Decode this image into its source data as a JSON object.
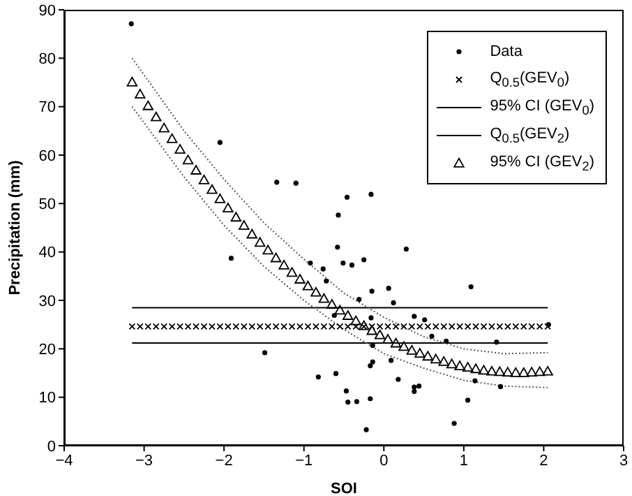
{
  "chart_data": {
    "type": "scatter",
    "xlabel": "SOI",
    "ylabel": "Precipitation (mm)",
    "xlim": [
      -4,
      3
    ],
    "xticks": [
      -4,
      -3,
      -2,
      -1,
      0,
      1,
      2,
      3
    ],
    "ylim": [
      0,
      90
    ],
    "yticks": [
      0,
      10,
      20,
      30,
      40,
      50,
      60,
      70,
      80,
      90
    ],
    "legend": "top right",
    "series": [
      {
        "name": "Data",
        "marker": "circle",
        "color": "#000000",
        "x": [
          -3.16,
          -2.05,
          -1.34,
          -1.1,
          -0.46,
          -0.57,
          -0.16,
          -0.58,
          -0.51,
          -0.4,
          -0.92,
          -0.76,
          -1.91,
          -0.72,
          -0.62,
          -1.49,
          -0.82,
          -0.6,
          -0.47,
          -0.45,
          -0.25,
          0.28,
          -0.15,
          0.06,
          0.12,
          -0.31,
          1.09,
          0.38,
          0.51,
          -0.16,
          0.6,
          0.78,
          1.41,
          -0.14,
          0.09,
          -0.14,
          -0.17,
          0.18,
          0.38,
          0.38,
          0.44,
          1.14,
          1.46,
          -0.34,
          -0.17,
          1.05,
          -0.22,
          0.88,
          2.06
        ],
        "values": [
          87.1,
          62.6,
          54.4,
          54.2,
          51.3,
          47.6,
          51.9,
          41.0,
          37.7,
          37.3,
          37.7,
          36.5,
          38.7,
          34.0,
          26.9,
          19.2,
          14.2,
          14.9,
          11.3,
          9.0,
          38.4,
          40.6,
          31.9,
          32.5,
          29.5,
          30.2,
          32.8,
          26.7,
          26.0,
          26.4,
          22.6,
          21.6,
          21.4,
          20.7,
          17.6,
          17.3,
          16.5,
          13.7,
          12.1,
          11.2,
          12.3,
          13.4,
          12.2,
          9.1,
          9.7,
          9.4,
          3.3,
          4.6,
          25.0
        ]
      },
      {
        "name": "Q$_{0.5}$(GEV$_{0}$)",
        "marker": "cross",
        "color": "#000000",
        "x": [
          -3.15,
          -3.05,
          -2.95,
          -2.85,
          -2.75,
          -2.65,
          -2.55,
          -2.45,
          -2.35,
          -2.25,
          -2.15,
          -2.05,
          -1.95,
          -1.85,
          -1.75,
          -1.65,
          -1.55,
          -1.45,
          -1.35,
          -1.25,
          -1.15,
          -1.05,
          -0.95,
          -0.85,
          -0.75,
          -0.65,
          -0.55,
          -0.45,
          -0.35,
          -0.25,
          -0.15,
          -0.05,
          0.05,
          0.15,
          0.25,
          0.35,
          0.45,
          0.55,
          0.65,
          0.75,
          0.85,
          0.95,
          1.05,
          1.15,
          1.25,
          1.35,
          1.45,
          1.55,
          1.65,
          1.75,
          1.85,
          1.95,
          2.05
        ],
        "values": [
          24.6,
          24.6,
          24.6,
          24.6,
          24.6,
          24.6,
          24.6,
          24.6,
          24.6,
          24.6,
          24.6,
          24.6,
          24.6,
          24.6,
          24.6,
          24.6,
          24.6,
          24.6,
          24.6,
          24.6,
          24.6,
          24.6,
          24.6,
          24.6,
          24.6,
          24.6,
          24.6,
          24.6,
          24.6,
          24.6,
          24.6,
          24.6,
          24.6,
          24.6,
          24.6,
          24.6,
          24.6,
          24.6,
          24.6,
          24.6,
          24.6,
          24.6,
          24.6,
          24.6,
          24.6,
          24.6,
          24.6,
          24.6,
          24.6,
          24.6,
          24.6,
          24.6,
          24.6
        ]
      },
      {
        "name": "95% CI (GEV$_{0}$)",
        "type": "line",
        "marker": "none",
        "line_style": "solid",
        "color": "#000000",
        "x": [
          -3.15,
          2.05
        ],
        "values": [
          28.5,
          28.5
        ]
      },
      {
        "name": "Q$_{0.5}$(GEV$_{2}$)",
        "type": "line",
        "marker": "none",
        "line_style": "solid",
        "color": "#000000",
        "x": [
          -3.15,
          2.05
        ],
        "values": [
          21.2,
          21.2
        ]
      },
      {
        "name": "95% CI (GEV$_{2}$)",
        "marker": "triangle",
        "color": "#000000",
        "x": [
          -3.15,
          -3.05,
          -2.95,
          -2.85,
          -2.75,
          -2.65,
          -2.55,
          -2.45,
          -2.35,
          -2.25,
          -2.15,
          -2.05,
          -1.95,
          -1.85,
          -1.75,
          -1.65,
          -1.55,
          -1.45,
          -1.35,
          -1.25,
          -1.15,
          -1.05,
          -0.95,
          -0.85,
          -0.75,
          -0.65,
          -0.55,
          -0.45,
          -0.35,
          -0.25,
          -0.15,
          -0.05,
          0.05,
          0.15,
          0.25,
          0.35,
          0.45,
          0.55,
          0.65,
          0.75,
          0.85,
          0.95,
          1.05,
          1.15,
          1.25,
          1.35,
          1.45,
          1.55,
          1.65,
          1.75,
          1.85,
          1.95,
          2.05
        ],
        "values": [
          75.0,
          72.5,
          70.1,
          67.8,
          65.5,
          63.3,
          61.1,
          58.9,
          56.8,
          54.8,
          52.8,
          50.9,
          49.0,
          47.1,
          45.4,
          43.6,
          41.9,
          40.3,
          38.7,
          37.2,
          35.7,
          34.3,
          32.9,
          31.6,
          30.3,
          29.1,
          27.9,
          26.8,
          25.7,
          24.7,
          23.7,
          22.8,
          21.9,
          21.1,
          20.4,
          19.6,
          19.0,
          18.4,
          17.8,
          17.3,
          16.8,
          16.4,
          16.1,
          15.8,
          15.5,
          15.3,
          15.2,
          15.1,
          15.0,
          15.0,
          15.1,
          15.2,
          15.3
        ]
      },
      {
        "type": "line",
        "marker": "none",
        "line_style": "dotted",
        "color": "#555555",
        "x": [
          -3.15,
          -2.5,
          -2,
          -1.5,
          -1,
          -0.5,
          0,
          0.5,
          1,
          1.5,
          2.05
        ],
        "values": [
          80,
          65,
          55,
          46,
          38.5,
          31.5,
          26.5,
          22.5,
          20,
          19,
          19.2
        ]
      },
      {
        "type": "line",
        "marker": "none",
        "line_style": "dotted",
        "color": "#555555",
        "x": [
          -3.15,
          -2.5,
          -2,
          -1.5,
          -1,
          -0.5,
          0,
          0.5,
          1,
          1.5,
          2.05
        ],
        "values": [
          70,
          55.5,
          45.5,
          37,
          30,
          24,
          19,
          16,
          13.5,
          12.3,
          12
        ]
      }
    ]
  }
}
